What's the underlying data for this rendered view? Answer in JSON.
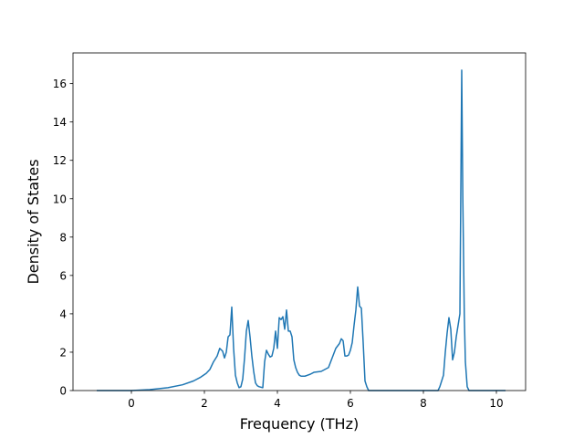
{
  "chart_data": {
    "type": "line",
    "title": "",
    "xlabel": "Frequency (THz)",
    "ylabel": "Density of States",
    "xlim": [
      -1.6,
      10.8
    ],
    "ylim": [
      0,
      17.6
    ],
    "xticks": [
      0,
      2,
      4,
      6,
      8,
      10
    ],
    "yticks": [
      0,
      2,
      4,
      6,
      8,
      10,
      12,
      14,
      16
    ],
    "grid": false,
    "line_color": "#1f77b4",
    "series": [
      {
        "x": [
          -0.95,
          0.0,
          0.5,
          1.0,
          1.4,
          1.7,
          1.9,
          2.05,
          2.15,
          2.25,
          2.35,
          2.42,
          2.5,
          2.55,
          2.6,
          2.65,
          2.7,
          2.75,
          2.8,
          2.85,
          2.9,
          2.95,
          3.0,
          3.05,
          3.1,
          3.15,
          3.2,
          3.25,
          3.3,
          3.35,
          3.4,
          3.45,
          3.5,
          3.6,
          3.65,
          3.7,
          3.75,
          3.8,
          3.85,
          3.9,
          3.95,
          4.0,
          4.05,
          4.1,
          4.15,
          4.2,
          4.25,
          4.3,
          4.35,
          4.4,
          4.45,
          4.5,
          4.55,
          4.6,
          4.65,
          4.7,
          4.75,
          4.8,
          4.9,
          5.0,
          5.2,
          5.4,
          5.6,
          5.7,
          5.75,
          5.8,
          5.85,
          5.9,
          5.95,
          6.0,
          6.05,
          6.1,
          6.15,
          6.2,
          6.25,
          6.3,
          6.35,
          6.4,
          6.45,
          6.5,
          6.55,
          6.6,
          6.7,
          8.4,
          8.45,
          8.5,
          8.55,
          8.6,
          8.65,
          8.7,
          8.75,
          8.8,
          8.85,
          8.9,
          8.95,
          9.0,
          9.05,
          9.08,
          9.12,
          9.15,
          9.2,
          9.25,
          9.3,
          10.25
        ],
        "y": [
          0,
          0,
          0.05,
          0.15,
          0.3,
          0.5,
          0.7,
          0.9,
          1.1,
          1.5,
          1.8,
          2.2,
          2.05,
          1.7,
          2.0,
          2.8,
          2.9,
          4.35,
          2.2,
          0.8,
          0.4,
          0.15,
          0.2,
          0.6,
          1.7,
          3.1,
          3.65,
          2.8,
          1.8,
          1.0,
          0.4,
          0.25,
          0.2,
          0.15,
          1.5,
          2.1,
          1.9,
          1.75,
          1.8,
          2.2,
          3.1,
          2.2,
          3.8,
          3.7,
          3.85,
          3.2,
          4.2,
          3.1,
          3.1,
          2.8,
          1.6,
          1.2,
          0.95,
          0.8,
          0.75,
          0.75,
          0.75,
          0.78,
          0.85,
          0.95,
          1.0,
          1.2,
          2.2,
          2.45,
          2.7,
          2.6,
          1.8,
          1.8,
          1.85,
          2.1,
          2.5,
          3.4,
          4.2,
          5.4,
          4.4,
          4.3,
          2.5,
          0.5,
          0.2,
          0.0,
          0.0,
          0.0,
          0.0,
          0.0,
          0.2,
          0.5,
          0.8,
          2.0,
          3.0,
          3.8,
          3.2,
          1.6,
          2.0,
          2.8,
          3.4,
          4.0,
          16.7,
          10.0,
          4.0,
          1.5,
          0.2,
          0.0,
          0.0,
          0.0
        ]
      }
    ]
  }
}
